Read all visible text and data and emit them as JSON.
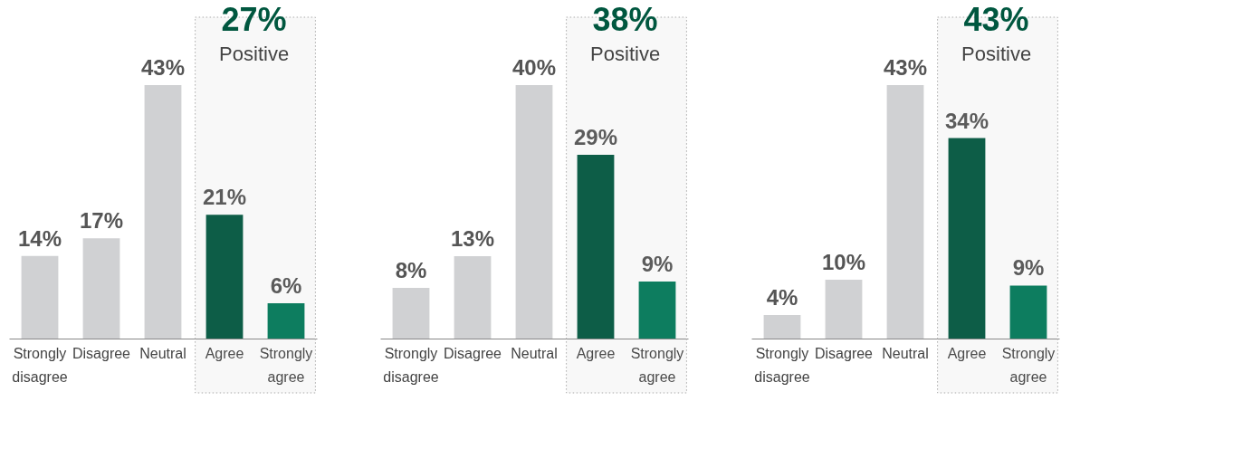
{
  "chart_data": [
    {
      "type": "bar",
      "categories": [
        "Strongly disagree",
        "Disagree",
        "Neutral",
        "Agree",
        "Strongly agree"
      ],
      "values": [
        14,
        17,
        43,
        21,
        6
      ],
      "value_labels": [
        "14%",
        "17%",
        "43%",
        "21%",
        "6%"
      ],
      "colors": [
        "#d0d1d3",
        "#d0d1d3",
        "#d0d1d3",
        "#00573f",
        "#007a5a"
      ],
      "annotations": [
        "27%",
        "Positive"
      ],
      "bands": [
        {
          "axis": "x",
          "from": "Agree",
          "to": "Strongly agree",
          "color": "#aaaaaa"
        }
      ]
    },
    {
      "type": "bar",
      "categories": [
        "Strongly disagree",
        "Disagree",
        "Neutral",
        "Agree",
        "Strongly agree"
      ],
      "values": [
        8,
        13,
        40,
        29,
        9
      ],
      "value_labels": [
        "8%",
        "13%",
        "40%",
        "29%",
        "9%"
      ],
      "colors": [
        "#d0d1d3",
        "#d0d1d3",
        "#d0d1d3",
        "#00573f",
        "#007a5a"
      ],
      "annotations": [
        "38%",
        "Positive"
      ],
      "bands": [
        {
          "axis": "x",
          "from": "Agree",
          "to": "Strongly agree",
          "color": "#aaaaaa"
        }
      ]
    },
    {
      "type": "bar",
      "categories": [
        "Strongly disagree",
        "Disagree",
        "Neutral",
        "Agree",
        "Strongly agree"
      ],
      "values": [
        4,
        10,
        43,
        34,
        9
      ],
      "value_labels": [
        "4%",
        "10%",
        "43%",
        "34%",
        "9%"
      ],
      "colors": [
        "#d0d1d3",
        "#d0d1d3",
        "#d0d1d3",
        "#00573f",
        "#007a5a"
      ],
      "annotations": [
        "43%",
        "Positive"
      ],
      "bands": [
        {
          "axis": "x",
          "from": "Agree",
          "to": "Strongly agree",
          "color": "#aaaaaa"
        }
      ]
    }
  ]
}
